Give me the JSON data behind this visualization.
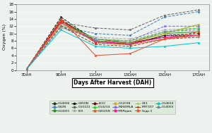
{
  "x_labels": [
    "7DAH",
    "9DAH",
    "11DAH",
    "13DAH",
    "15DAH",
    "17DAH"
  ],
  "x_values": [
    0,
    1,
    2,
    3,
    4,
    5
  ],
  "xlabel": "Days After Harvest (DAH)",
  "ylabel": "Oxygen (%)",
  "ylim": [
    0,
    18
  ],
  "yticks": [
    0,
    2,
    4,
    6,
    8,
    10,
    12,
    14,
    16,
    18
  ],
  "bg_color": "#eef2ee",
  "series": [
    {
      "name": "CG4006",
      "color": "#2f2f2f",
      "linestyle": "--",
      "marker": "o",
      "values": [
        0.3,
        14.0,
        7.5,
        7.0,
        9.5,
        9.5
      ]
    },
    {
      "name": "G42N",
      "color": "#4682b4",
      "linestyle": "--",
      "marker": "o",
      "values": [
        0.3,
        12.0,
        10.0,
        9.5,
        14.5,
        16.0
      ]
    },
    {
      "name": "CG3001",
      "color": "#228b22",
      "linestyle": "-",
      "marker": "o",
      "values": [
        0.3,
        13.5,
        8.5,
        7.5,
        10.0,
        10.5
      ]
    },
    {
      "name": "G350N",
      "color": "#1a1a1a",
      "linestyle": "--",
      "marker": "s",
      "values": [
        0.3,
        14.5,
        8.0,
        7.0,
        9.5,
        10.0
      ]
    },
    {
      "name": "CG5122",
      "color": "#696969",
      "linestyle": "--",
      "marker": "s",
      "values": [
        0.3,
        13.0,
        11.5,
        11.0,
        15.0,
        16.5
      ]
    },
    {
      "name": "B.9",
      "color": "#a9a9a9",
      "linestyle": "--",
      "marker": "s",
      "values": [
        0.3,
        11.5,
        9.0,
        8.5,
        11.0,
        11.5
      ]
    },
    {
      "name": "B.10",
      "color": "#8b0000",
      "linestyle": "-",
      "marker": "o",
      "values": [
        0.3,
        13.5,
        8.0,
        7.5,
        9.0,
        9.5
      ]
    },
    {
      "name": "CG4214",
      "color": "#32cd32",
      "linestyle": "--",
      "marker": "^",
      "values": [
        0.3,
        13.0,
        8.5,
        8.0,
        10.5,
        11.5
      ]
    },
    {
      "name": "G2025N",
      "color": "#ff4500",
      "linestyle": "--",
      "marker": "^",
      "values": [
        0.3,
        13.5,
        7.5,
        7.0,
        8.5,
        10.5
      ]
    },
    {
      "name": "CG2038",
      "color": "#daa520",
      "linestyle": "-",
      "marker": "o",
      "values": [
        0.3,
        12.5,
        8.0,
        7.5,
        10.0,
        12.5
      ]
    },
    {
      "name": "M26EMLA",
      "color": "#7b68ee",
      "linestyle": "--",
      "marker": "s",
      "values": [
        0.3,
        12.0,
        8.5,
        8.0,
        12.0,
        12.0
      ]
    },
    {
      "name": "M9Pajam",
      "color": "#ff1493",
      "linestyle": "-",
      "marker": "o",
      "values": [
        0.3,
        13.0,
        7.8,
        7.2,
        9.0,
        9.5
      ]
    },
    {
      "name": "G11",
      "color": "#9acd32",
      "linestyle": "--",
      "marker": ".",
      "values": [
        0.3,
        12.5,
        8.5,
        8.0,
        10.0,
        12.5
      ]
    },
    {
      "name": "M9T337",
      "color": "#8b4513",
      "linestyle": "--",
      "marker": ".",
      "values": [
        0.3,
        12.0,
        7.0,
        6.5,
        8.5,
        9.0
      ]
    },
    {
      "name": "Supp.3",
      "color": "#e8523a",
      "linestyle": "-",
      "marker": "o",
      "values": [
        0.3,
        14.0,
        4.0,
        4.5,
        8.5,
        9.5
      ]
    },
    {
      "name": "CG4814",
      "color": "#00ced1",
      "linestyle": "-",
      "marker": "o",
      "values": [
        0.3,
        11.0,
        6.5,
        6.0,
        6.5,
        7.5
      ]
    },
    {
      "name": "CG4003",
      "color": "#708090",
      "linestyle": "--",
      "marker": "s",
      "values": [
        0.3,
        12.0,
        8.0,
        7.5,
        10.5,
        11.0
      ]
    }
  ],
  "legend_ncol": 6,
  "legend_fontsize": 3.2
}
